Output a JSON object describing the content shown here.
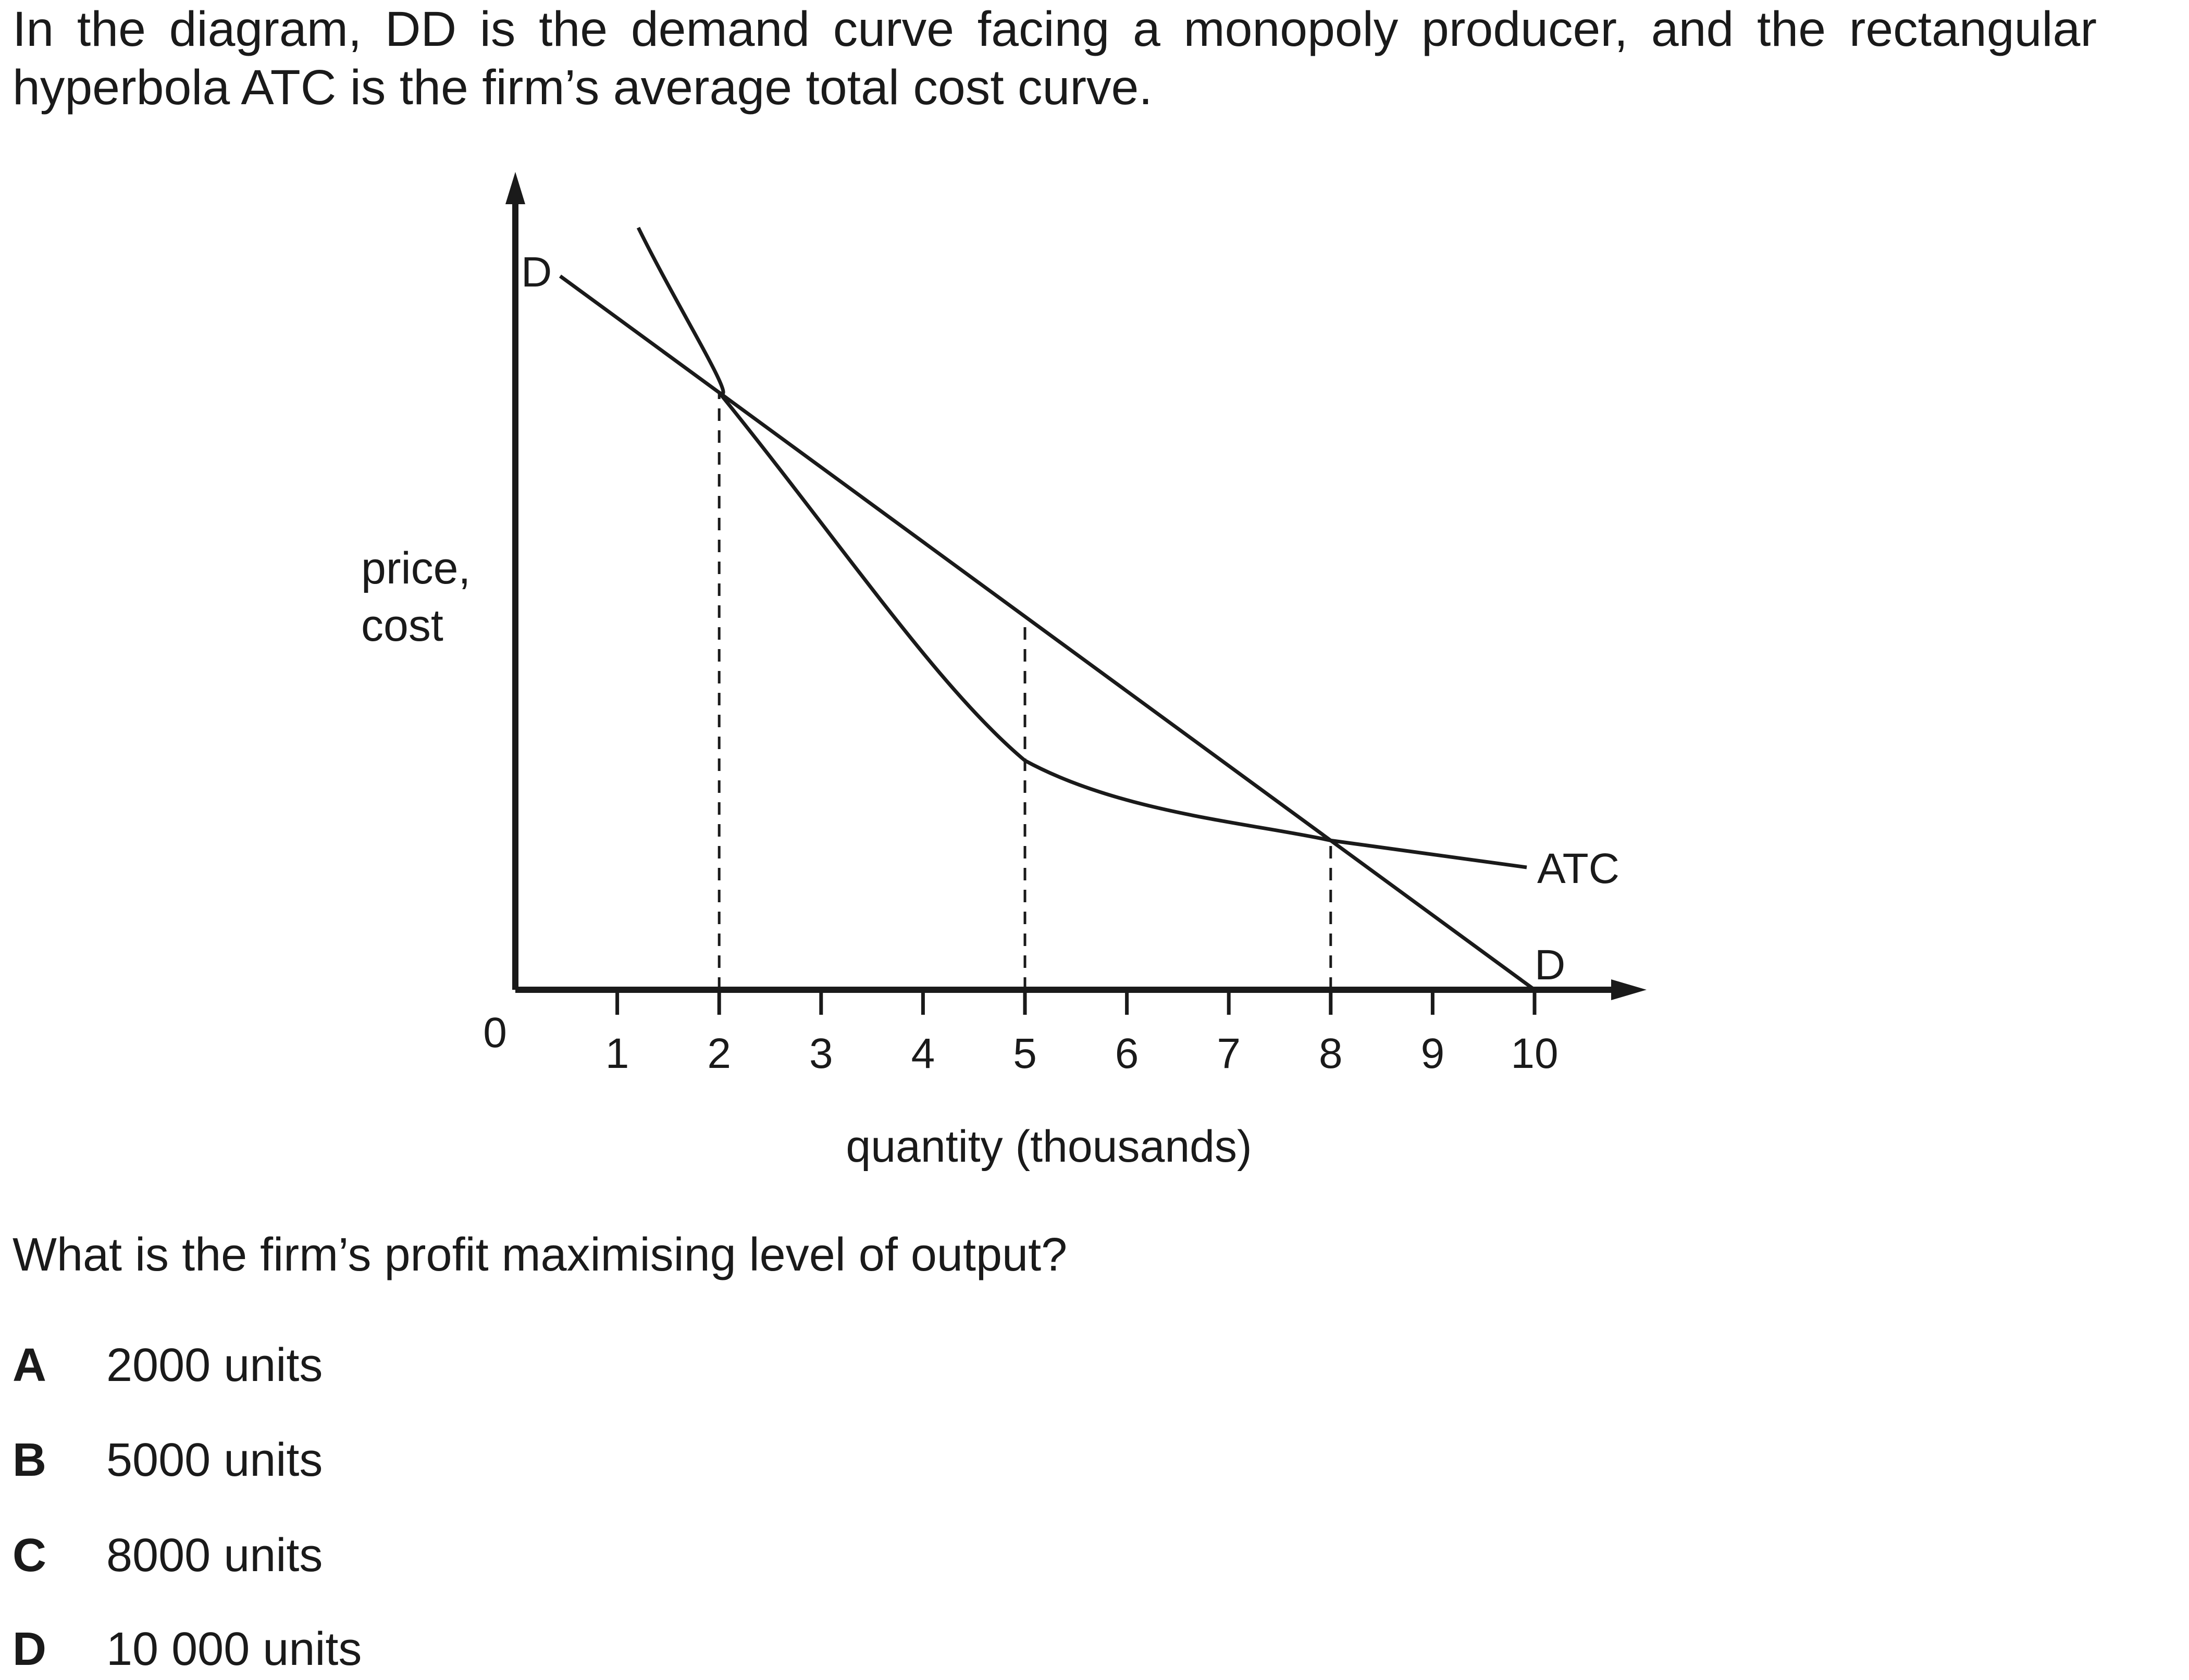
{
  "intro": {
    "line1": "In the diagram, DD is the demand curve facing a monopoly producer, and the rectangular",
    "line2": "hyperbola ATC is the firm’s average total cost curve."
  },
  "diagram": {
    "y_axis_label_line1": "price,",
    "y_axis_label_line2": "cost",
    "x_axis_label": "quantity (thousands)",
    "origin_label": "0",
    "x_ticks": [
      "1",
      "2",
      "3",
      "4",
      "5",
      "6",
      "7",
      "8",
      "9",
      "10"
    ],
    "demand_label_top": "D",
    "demand_label_bottom": "D",
    "atc_label": "ATC",
    "dashed_guides_at": [
      2,
      5,
      8
    ]
  },
  "question": "What is the firm’s profit maximising level of output?",
  "options": [
    {
      "letter": "A",
      "text": "2000 units"
    },
    {
      "letter": "B",
      "text": "5000 units"
    },
    {
      "letter": "C",
      "text": "8000 units"
    },
    {
      "letter": "D",
      "text": "10 000 units"
    }
  ]
}
